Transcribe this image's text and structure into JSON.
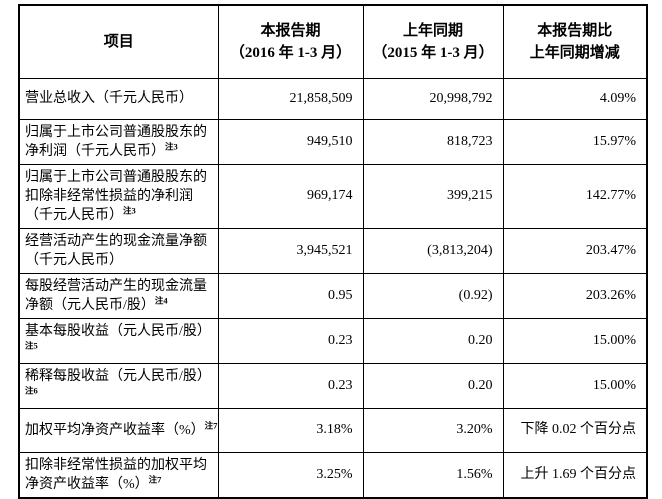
{
  "page": {
    "background": "#ffffff",
    "border_color": "#000000",
    "text_color": "#000000"
  },
  "table": {
    "columns": [
      {
        "lines": [
          "项目"
        ]
      },
      {
        "lines": [
          "本报告期",
          "（2016 年 1-3 月）"
        ]
      },
      {
        "lines": [
          "上年同期",
          "（2015 年 1-3 月）"
        ]
      },
      {
        "lines": [
          "本报告期比",
          "上年同期增减"
        ]
      }
    ],
    "rows": [
      {
        "label_lines": [
          "营业总收入（千元人民币）"
        ],
        "note": "",
        "current": "21,858,509",
        "prior": "20,998,792",
        "change": "4.09%"
      },
      {
        "label_lines": [
          "归属于上市公司普通股股东的",
          "净利润（千元人民币）"
        ],
        "note": "注3",
        "current": "949,510",
        "prior": "818,723",
        "change": "15.97%"
      },
      {
        "label_lines": [
          "归属于上市公司普通股股东的",
          "扣除非经常性损益的净利润",
          "（千元人民币）"
        ],
        "note": "注3",
        "current": "969,174",
        "prior": "399,215",
        "change": "142.77%"
      },
      {
        "label_lines": [
          "经营活动产生的现金流量净额",
          "（千元人民币）"
        ],
        "note": "",
        "current": "3,945,521",
        "prior": "(3,813,204)",
        "change": "203.47%"
      },
      {
        "label_lines": [
          "每股经营活动产生的现金流量",
          "净额（元人民币/股）"
        ],
        "note": "注4",
        "current": "0.95",
        "prior": "(0.92)",
        "change": "203.26%"
      },
      {
        "label_lines": [
          "基本每股收益（元人民币/股）",
          ""
        ],
        "note": "注5",
        "current": "0.23",
        "prior": "0.20",
        "change": "15.00%"
      },
      {
        "label_lines": [
          "稀释每股收益（元人民币/股）",
          ""
        ],
        "note": "注6",
        "current": "0.23",
        "prior": "0.20",
        "change": "15.00%"
      },
      {
        "label_lines": [
          "加权平均净资产收益率（%）"
        ],
        "note": "注7",
        "current": "3.18%",
        "prior": "3.20%",
        "change": "下降 0.02 个百分点"
      },
      {
        "label_lines": [
          "扣除非经常性损益的加权平均",
          "净资产收益率（%）"
        ],
        "note": "注7",
        "current": "3.25%",
        "prior": "1.56%",
        "change": "上升 1.69 个百分点"
      }
    ]
  }
}
